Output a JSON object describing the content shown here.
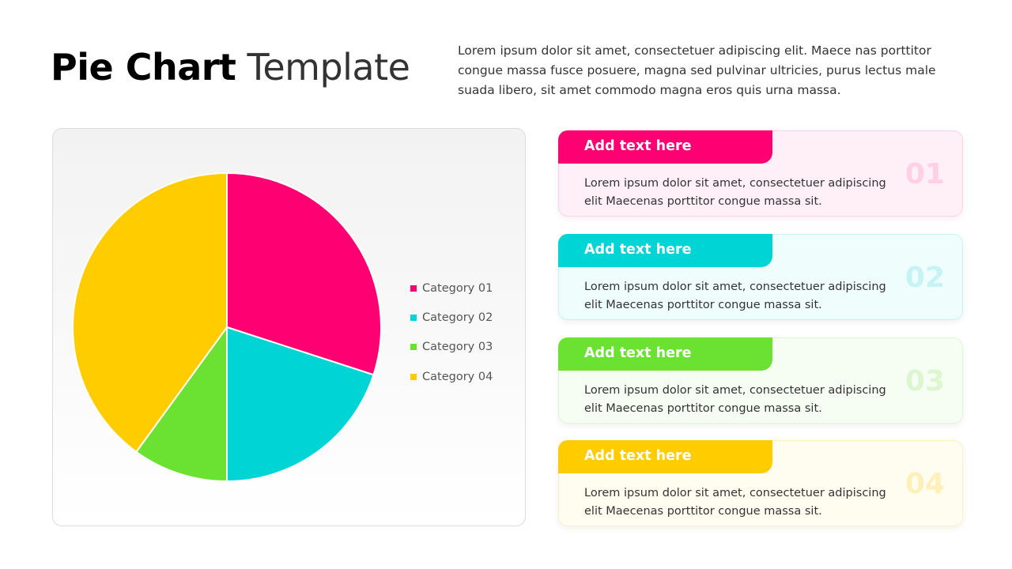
{
  "header": {
    "title_bold": "Pie Chart",
    "title_light": "Template",
    "intro": "Lorem ipsum dolor sit amet, consectetuer adipiscing elit. Maece nas porttitor congue massa fusce posuere, magna sed pulvinar ultricies, purus lectus male suada libero, sit amet commodo magna eros quis urna massa."
  },
  "chart_data": {
    "type": "pie",
    "categories": [
      "Category 01",
      "Category 02",
      "Category 03",
      "Category 04"
    ],
    "values": [
      30,
      20,
      10,
      40
    ],
    "colors": [
      "#ff0073",
      "#00d4d4",
      "#6be232",
      "#ffcc00"
    ],
    "start": "top",
    "direction": "clockwise",
    "legend": "right"
  },
  "cards": [
    {
      "title": "Add text here",
      "text": "Lorem ipsum dolor sit amet, consectetuer adipiscing elit Maecenas porttitor congue massa sit.",
      "num": "01",
      "color": "#ff0073",
      "bg": "#fff0f7",
      "border": "#ffd3e6",
      "numColor": "#ffcfe3"
    },
    {
      "title": "Add text here",
      "text": "Lorem ipsum dolor sit amet, consectetuer adipiscing elit Maecenas porttitor congue massa sit.",
      "num": "02",
      "color": "#00d4d4",
      "bg": "#effdfd",
      "border": "#c9f3f3",
      "numColor": "#c6f4f4"
    },
    {
      "title": "Add text here",
      "text": "Lorem ipsum dolor sit amet, consectetuer adipiscing elit Maecenas porttitor congue massa sit.",
      "num": "03",
      "color": "#6be232",
      "bg": "#f6fdf2",
      "border": "#e0f5d5",
      "numColor": "#dcf6cf"
    },
    {
      "title": "Add text here",
      "text": "Lorem ipsum dolor sit amet, consectetuer adipiscing elit Maecenas porttitor congue massa sit.",
      "num": "04",
      "color": "#ffcc00",
      "bg": "#fffdf0",
      "border": "#fbf1c8",
      "numColor": "#fdf0bb"
    }
  ]
}
